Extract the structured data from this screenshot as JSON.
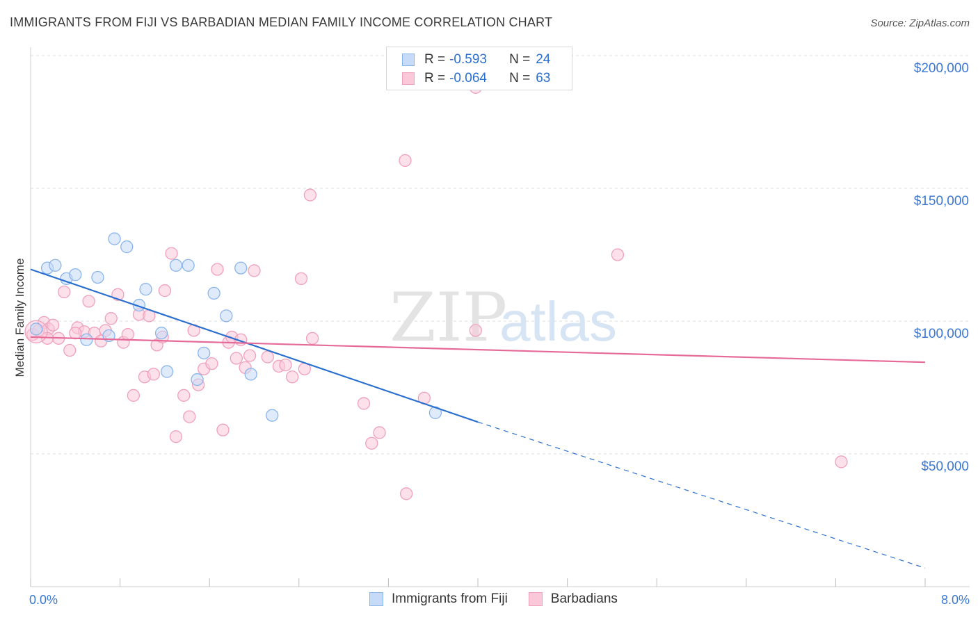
{
  "header": {
    "title": "IMMIGRANTS FROM FIJI VS BARBADIAN MEDIAN FAMILY INCOME CORRELATION CHART",
    "source": "Source: ZipAtlas.com"
  },
  "watermark": {
    "zip": "ZIP",
    "atlas": "atlas"
  },
  "legend": {
    "rows": [
      {
        "r_label": "R =",
        "r_value": "-0.593",
        "n_label": "N =",
        "n_value": "24",
        "color": "#8ab4ec",
        "fill": "#c5dbf7"
      },
      {
        "r_label": "R =",
        "r_value": "-0.064",
        "n_label": "N =",
        "n_value": "63",
        "color": "#f0a0bc",
        "fill": "#fac8d8"
      }
    ]
  },
  "chart_data": {
    "type": "scatter",
    "title": "IMMIGRANTS FROM FIJI VS BARBADIAN MEDIAN FAMILY INCOME CORRELATION CHART",
    "xlabel": "",
    "ylabel": "Median Family Income",
    "xlim": [
      0,
      8
    ],
    "ylim": [
      0,
      200000
    ],
    "x_tick_labels": [
      "0.0%",
      "8.0%"
    ],
    "y_ticks": [
      50000,
      100000,
      150000,
      200000
    ],
    "y_tick_labels": [
      "$50,000",
      "$100,000",
      "$150,000",
      "$200,000"
    ],
    "grid": true,
    "series": [
      {
        "name": "Immigrants from Fiji",
        "color": "#2a6fd0",
        "marker_stroke": "#8ab4ec",
        "marker_fill": "#c5dbf7",
        "points": [
          [
            0.05,
            97000
          ],
          [
            0.15,
            120000
          ],
          [
            0.22,
            121000
          ],
          [
            0.32,
            116000
          ],
          [
            0.4,
            117500
          ],
          [
            0.5,
            93000
          ],
          [
            0.6,
            116500
          ],
          [
            0.7,
            94500
          ],
          [
            0.75,
            131000
          ],
          [
            0.86,
            128000
          ],
          [
            0.97,
            106000
          ],
          [
            1.03,
            112000
          ],
          [
            1.17,
            95500
          ],
          [
            1.22,
            81000
          ],
          [
            1.3,
            121000
          ],
          [
            1.41,
            121000
          ],
          [
            1.49,
            78000
          ],
          [
            1.55,
            88000
          ],
          [
            1.64,
            110500
          ],
          [
            1.75,
            102000
          ],
          [
            1.88,
            120000
          ],
          [
            1.97,
            80000
          ],
          [
            2.16,
            64500
          ],
          [
            3.62,
            65500
          ]
        ],
        "trend": {
          "x": [
            0,
            4.0
          ],
          "y": [
            119500,
            62000
          ]
        },
        "trend_dashed": {
          "x": [
            4.0,
            8.0
          ],
          "y": [
            62000,
            7000
          ]
        }
      },
      {
        "name": "Barbadians",
        "color": "#e66a97",
        "marker_stroke": "#f0a0bc",
        "marker_fill": "#fac8d8",
        "points": [
          [
            0.02,
            95000
          ],
          [
            0.07,
            96500
          ],
          [
            0.12,
            99500
          ],
          [
            0.16,
            97000
          ],
          [
            0.2,
            98500
          ],
          [
            0.25,
            93500
          ],
          [
            0.3,
            111000
          ],
          [
            0.35,
            89000
          ],
          [
            0.42,
            97500
          ],
          [
            0.48,
            96000
          ],
          [
            0.52,
            107500
          ],
          [
            0.57,
            95500
          ],
          [
            0.63,
            92500
          ],
          [
            0.67,
            96500
          ],
          [
            0.72,
            101000
          ],
          [
            0.78,
            110000
          ],
          [
            0.83,
            92000
          ],
          [
            0.87,
            95000
          ],
          [
            0.92,
            72000
          ],
          [
            0.97,
            102500
          ],
          [
            1.02,
            79000
          ],
          [
            1.06,
            102000
          ],
          [
            1.1,
            80000
          ],
          [
            1.13,
            91000
          ],
          [
            1.18,
            94000
          ],
          [
            1.2,
            111500
          ],
          [
            1.26,
            125500
          ],
          [
            1.3,
            56500
          ],
          [
            1.37,
            72000
          ],
          [
            1.42,
            64000
          ],
          [
            1.46,
            96500
          ],
          [
            1.5,
            76000
          ],
          [
            1.55,
            82000
          ],
          [
            1.62,
            84000
          ],
          [
            1.67,
            119500
          ],
          [
            1.72,
            59000
          ],
          [
            1.77,
            92000
          ],
          [
            1.8,
            94000
          ],
          [
            1.84,
            86000
          ],
          [
            1.88,
            93000
          ],
          [
            1.92,
            82500
          ],
          [
            1.96,
            87000
          ],
          [
            2.0,
            119000
          ],
          [
            2.12,
            86500
          ],
          [
            2.22,
            83000
          ],
          [
            2.28,
            83500
          ],
          [
            2.34,
            79000
          ],
          [
            2.42,
            116000
          ],
          [
            2.45,
            82000
          ],
          [
            2.5,
            147500
          ],
          [
            2.52,
            93500
          ],
          [
            2.98,
            69000
          ],
          [
            3.05,
            54000
          ],
          [
            3.12,
            58000
          ],
          [
            3.35,
            160500
          ],
          [
            3.36,
            35000
          ],
          [
            3.52,
            71000
          ],
          [
            3.98,
            188000
          ],
          [
            3.98,
            96500
          ],
          [
            5.25,
            125000
          ],
          [
            7.25,
            47000
          ],
          [
            0.15,
            93500
          ],
          [
            0.4,
            95500
          ]
        ],
        "trend": {
          "x": [
            0,
            8.0
          ],
          "y": [
            94000,
            84500
          ]
        }
      }
    ]
  },
  "bottom_legend": {
    "items": [
      {
        "label": "Immigrants from Fiji",
        "color": "#8ab4ec",
        "fill": "#c5dbf7"
      },
      {
        "label": "Barbadians",
        "color": "#f0a0bc",
        "fill": "#fac8d8"
      }
    ]
  }
}
